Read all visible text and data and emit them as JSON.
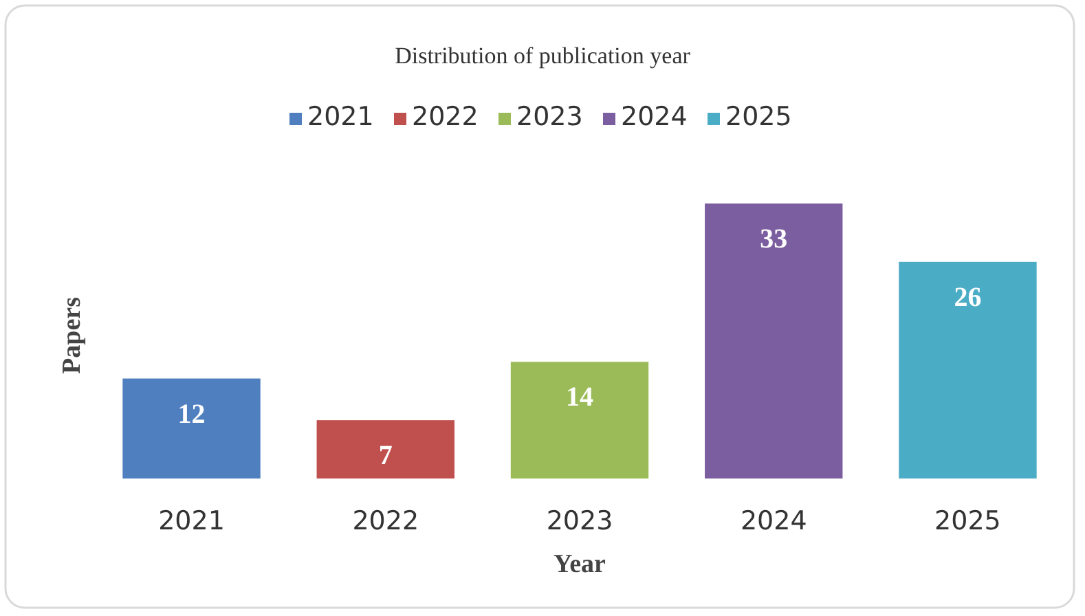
{
  "chart_data": {
    "type": "bar",
    "title": "Distribution of publication year",
    "xlabel": "Year",
    "ylabel": "Papers",
    "categories": [
      "2021",
      "2022",
      "2023",
      "2024",
      "2025"
    ],
    "series": [
      {
        "name": "2021",
        "color": "#4f7fbf",
        "values": [
          12,
          null,
          null,
          null,
          null
        ]
      },
      {
        "name": "2022",
        "color": "#c0504d",
        "values": [
          null,
          7,
          null,
          null,
          null
        ]
      },
      {
        "name": "2023",
        "color": "#9bbb59",
        "values": [
          null,
          null,
          14,
          null,
          null
        ]
      },
      {
        "name": "2024",
        "color": "#7b5e9f",
        "values": [
          null,
          null,
          null,
          33,
          null
        ]
      },
      {
        "name": "2025",
        "color": "#4bacc6",
        "values": [
          null,
          null,
          null,
          null,
          26
        ]
      }
    ],
    "stacked": true,
    "data_labels": true,
    "legend": "top"
  }
}
